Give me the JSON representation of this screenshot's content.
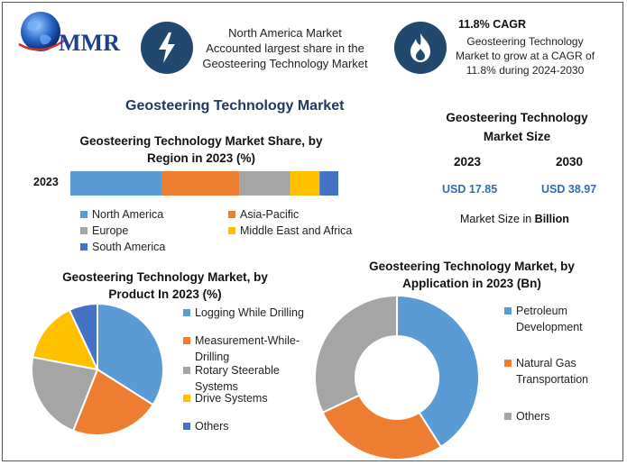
{
  "header": {
    "logo_text": "MMR",
    "highlight1": [
      "North America Market",
      "Accounted largest share in the",
      "Geosteering Technology Market"
    ],
    "cagr_title": "11.8% CAGR",
    "cagr_desc": [
      "Geosteering Technology",
      "Market to grow at a CAGR of",
      "11.8% during 2024-2030"
    ]
  },
  "main_title": "Geosteering Technology Market",
  "market_size": {
    "title": [
      "Geosteering Technology",
      "Market Size"
    ],
    "years": [
      "2023",
      "2030"
    ],
    "values": [
      "USD 17.85",
      "USD 38.97"
    ],
    "unit_prefix": "Market Size in ",
    "unit_bold": "Billion"
  },
  "colors": {
    "blue": "#5b9bd5",
    "orange": "#ed7d31",
    "gray": "#a5a5a5",
    "yellow": "#ffc000",
    "darkblue": "#4472c4",
    "navy": "#21486e"
  },
  "chart_data": [
    {
      "type": "bar",
      "stacked": true,
      "orientation": "horizontal",
      "title": "Geosteering Technology Market Share, by Region in 2023 (%)",
      "title_lines": [
        "Geosteering Technology Market Share, by",
        "Region in 2023 (%)"
      ],
      "categories": [
        "2023"
      ],
      "series": [
        {
          "name": "North America",
          "values": [
            34
          ],
          "color": "#5b9bd5"
        },
        {
          "name": "Asia-Pacific",
          "values": [
            29
          ],
          "color": "#ed7d31"
        },
        {
          "name": "Europe",
          "values": [
            19
          ],
          "color": "#a5a5a5"
        },
        {
          "name": "Middle East and Africa",
          "values": [
            11
          ],
          "color": "#ffc000"
        },
        {
          "name": "South America",
          "values": [
            7
          ],
          "color": "#4472c4"
        }
      ],
      "legend": "bottom"
    },
    {
      "type": "pie",
      "title": "Geosteering Technology Market, by Product In 2023 (%)",
      "title_lines": [
        "Geosteering Technology Market, by",
        "Product In 2023 (%)"
      ],
      "slices": [
        {
          "name": "Logging While Drilling",
          "name_lines": [
            "Logging While Drilling"
          ],
          "value": 34,
          "color": "#5b9bd5"
        },
        {
          "name": "Measurement-While-Drilling",
          "name_lines": [
            "Measurement-While-",
            "Drilling"
          ],
          "value": 22,
          "color": "#ed7d31"
        },
        {
          "name": "Rotary Steerable Systems",
          "name_lines": [
            "Rotary Steerable",
            "Systems"
          ],
          "value": 22,
          "color": "#a5a5a5"
        },
        {
          "name": "Drive Systems",
          "name_lines": [
            "Drive Systems"
          ],
          "value": 15,
          "color": "#ffc000"
        },
        {
          "name": "Others",
          "name_lines": [
            "Others"
          ],
          "value": 7,
          "color": "#4472c4"
        }
      ],
      "legend": "right"
    },
    {
      "type": "pie",
      "donut": true,
      "title": "Geosteering Technology Market, by Application in 2023 (Bn)",
      "title_lines": [
        "Geosteering Technology Market, by",
        "Application in 2023 (Bn)"
      ],
      "slices": [
        {
          "name": "Petroleum Development",
          "name_lines": [
            "Petroleum",
            "Development"
          ],
          "value": 41,
          "color": "#5b9bd5"
        },
        {
          "name": "Natural Gas Transportation",
          "name_lines": [
            "Natural Gas",
            "Transportation"
          ],
          "value": 27,
          "color": "#ed7d31"
        },
        {
          "name": "Others",
          "name_lines": [
            "Others"
          ],
          "value": 32,
          "color": "#a5a5a5"
        }
      ],
      "legend": "right"
    }
  ]
}
